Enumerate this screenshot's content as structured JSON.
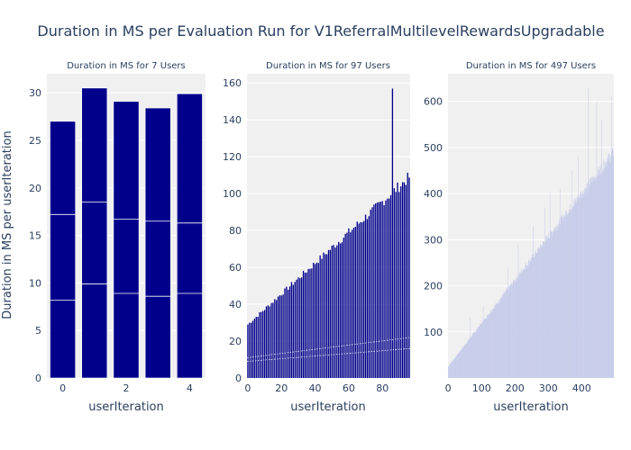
{
  "title": "Duration in MS per Evaluation Run for V1ReferralMultilevelRewardsUpgradable",
  "colors": {
    "bar_dark": "#00008b",
    "bar_light": "#c5cbe9",
    "plot_bg": "#f0f0f0",
    "grid": "#ffffff",
    "text": "#2a3f5f"
  },
  "chart_data": [
    {
      "type": "bar",
      "subtitle": "Duration in MS for 7 Users",
      "xlabel": "userIteration",
      "ylabel": "Duration in MS per userIteration",
      "xlim": [
        -0.5,
        4.5
      ],
      "ylim": [
        0,
        32
      ],
      "xticks": [
        0,
        2,
        4
      ],
      "yticks": [
        0,
        5,
        10,
        15,
        20,
        25,
        30
      ],
      "x": [
        0,
        1,
        2,
        3,
        4
      ],
      "values": [
        27.0,
        30.5,
        29.1,
        28.4,
        29.9
      ],
      "segment_lines": [
        [
          8.2,
          17.2
        ],
        [
          9.9,
          18.5
        ],
        [
          8.9,
          16.7
        ],
        [
          8.6,
          16.5
        ],
        [
          8.9,
          16.3
        ]
      ],
      "bar_style": "dark"
    },
    {
      "type": "bar",
      "subtitle": "Duration in MS for 97 Users",
      "xlabel": "userIteration",
      "xlim": [
        -0.5,
        96.5
      ],
      "ylim": [
        0,
        165
      ],
      "xticks": [
        0,
        20,
        40,
        60,
        80
      ],
      "yticks": [
        0,
        20,
        40,
        60,
        80,
        100,
        120,
        140,
        160
      ],
      "x_count": 97,
      "trend": {
        "start": 29,
        "end": 109
      },
      "spikes": [
        {
          "x": 86,
          "value": 157
        }
      ],
      "segment_lines": [
        [
          9,
          16
        ],
        [
          11,
          22
        ]
      ],
      "bar_style": "dark-thin"
    },
    {
      "type": "bar",
      "subtitle": "Duration in MS for 497 Users",
      "xlabel": "userIteration",
      "xlim": [
        -0.5,
        496.5
      ],
      "ylim": [
        0,
        660
      ],
      "xticks": [
        0,
        100,
        200,
        300,
        400
      ],
      "yticks": [
        100,
        200,
        300,
        400,
        500,
        600
      ],
      "x_count": 497,
      "trend": {
        "start": 25,
        "end": 490
      },
      "spikes": [
        {
          "x": 65,
          "value": 130
        },
        {
          "x": 105,
          "value": 155
        },
        {
          "x": 180,
          "value": 240
        },
        {
          "x": 210,
          "value": 290
        },
        {
          "x": 255,
          "value": 330
        },
        {
          "x": 290,
          "value": 370
        },
        {
          "x": 305,
          "value": 405
        },
        {
          "x": 335,
          "value": 410
        },
        {
          "x": 370,
          "value": 450
        },
        {
          "x": 390,
          "value": 480
        },
        {
          "x": 420,
          "value": 630
        },
        {
          "x": 445,
          "value": 600
        },
        {
          "x": 460,
          "value": 560
        },
        {
          "x": 490,
          "value": 610
        }
      ],
      "bar_style": "light"
    }
  ]
}
